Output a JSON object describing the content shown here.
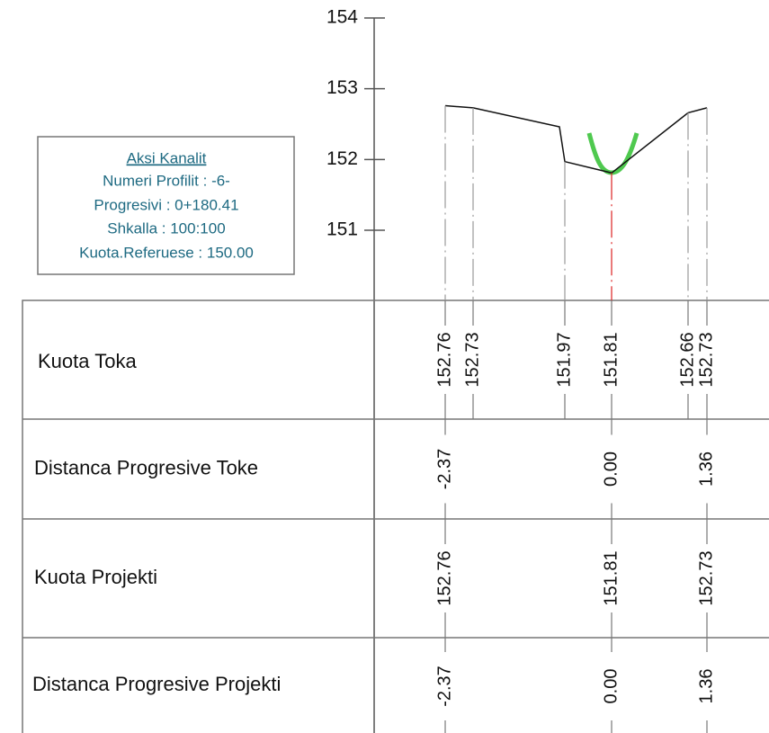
{
  "axis": {
    "ticks": [
      151,
      152,
      153,
      154
    ]
  },
  "info_box": {
    "title": "Aksi Kanalit",
    "lines": [
      "Numeri Profilit : -6-",
      "Progresivi : 0+180.41",
      "Shkalla : 100:100",
      "Kuota.Referuese : 150.00"
    ]
  },
  "rows": [
    {
      "label": "Kuota Toka",
      "values": [
        "152.76",
        "152.73",
        "151.97",
        "151.81",
        "152.66",
        "152.73"
      ]
    },
    {
      "label": "Distanca Progresive Toke",
      "values": [
        "-2.37",
        "0.00",
        "1.36"
      ]
    },
    {
      "label": "Kuota Projekti",
      "values": [
        "152.76",
        "151.81",
        "152.73"
      ]
    },
    {
      "label": "Distanca Progresive Projekti",
      "values": [
        "-2.37",
        "0.00",
        "1.36"
      ]
    }
  ]
}
